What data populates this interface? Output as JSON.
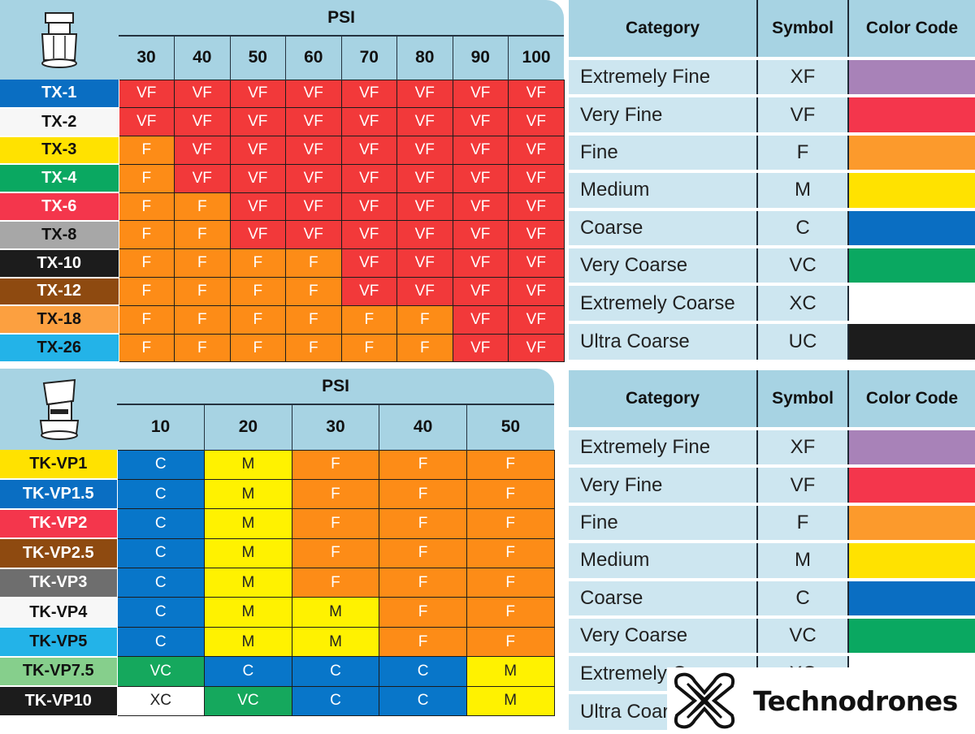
{
  "colors": {
    "XF": "#a882b8",
    "VF": "#f4364c",
    "F": "#fc8d1c",
    "M": "#ffe200",
    "C": "#0a6ec2",
    "VC": "#0aa861",
    "XC": "#ffffff",
    "UC": "#1c1c1c",
    "cell_VF": "#f2393a",
    "cell_F": "#fd8c17",
    "cell_M": "#fff200",
    "cell_C": "#0876c9",
    "cell_VC": "#15a85d",
    "cell_XC": "#ffffff"
  },
  "tx_table": {
    "psi_title": "PSI",
    "psi": [
      "30",
      "40",
      "50",
      "60",
      "70",
      "80",
      "90",
      "100"
    ],
    "rows": [
      {
        "name": "TX-1",
        "bg": "#0a6ec2",
        "fg": "#ffffff",
        "values": [
          "VF",
          "VF",
          "VF",
          "VF",
          "VF",
          "VF",
          "VF",
          "VF"
        ]
      },
      {
        "name": "TX-2",
        "bg": "#f7f7f7",
        "fg": "#111111",
        "values": [
          "VF",
          "VF",
          "VF",
          "VF",
          "VF",
          "VF",
          "VF",
          "VF"
        ]
      },
      {
        "name": "TX-3",
        "bg": "#ffe200",
        "fg": "#111111",
        "values": [
          "F",
          "VF",
          "VF",
          "VF",
          "VF",
          "VF",
          "VF",
          "VF"
        ]
      },
      {
        "name": "TX-4",
        "bg": "#0aa861",
        "fg": "#ffffff",
        "values": [
          "F",
          "VF",
          "VF",
          "VF",
          "VF",
          "VF",
          "VF",
          "VF"
        ]
      },
      {
        "name": "TX-6",
        "bg": "#f4364c",
        "fg": "#ffffff",
        "values": [
          "F",
          "F",
          "VF",
          "VF",
          "VF",
          "VF",
          "VF",
          "VF"
        ]
      },
      {
        "name": "TX-8",
        "bg": "#a7a7a7",
        "fg": "#111111",
        "values": [
          "F",
          "F",
          "VF",
          "VF",
          "VF",
          "VF",
          "VF",
          "VF"
        ]
      },
      {
        "name": "TX-10",
        "bg": "#1c1c1c",
        "fg": "#ffffff",
        "values": [
          "F",
          "F",
          "F",
          "F",
          "VF",
          "VF",
          "VF",
          "VF"
        ]
      },
      {
        "name": "TX-12",
        "bg": "#8e4a10",
        "fg": "#ffffff",
        "values": [
          "F",
          "F",
          "F",
          "F",
          "VF",
          "VF",
          "VF",
          "VF"
        ]
      },
      {
        "name": "TX-18",
        "bg": "#fca040",
        "fg": "#111111",
        "values": [
          "F",
          "F",
          "F",
          "F",
          "F",
          "F",
          "VF",
          "VF"
        ]
      },
      {
        "name": "TX-26",
        "bg": "#23b3e8",
        "fg": "#111111",
        "values": [
          "F",
          "F",
          "F",
          "F",
          "F",
          "F",
          "VF",
          "VF"
        ]
      }
    ]
  },
  "tk_table": {
    "psi_title": "PSI",
    "psi": [
      "10",
      "20",
      "30",
      "40",
      "50"
    ],
    "rows": [
      {
        "name": "TK-VP1",
        "bg": "#ffe200",
        "fg": "#111111",
        "values": [
          "C",
          "M",
          "F",
          "F",
          "F"
        ]
      },
      {
        "name": "TK-VP1.5",
        "bg": "#0a6ec2",
        "fg": "#ffffff",
        "values": [
          "C",
          "M",
          "F",
          "F",
          "F"
        ]
      },
      {
        "name": "TK-VP2",
        "bg": "#f4364c",
        "fg": "#ffffff",
        "values": [
          "C",
          "M",
          "F",
          "F",
          "F"
        ]
      },
      {
        "name": "TK-VP2.5",
        "bg": "#8e4a10",
        "fg": "#ffffff",
        "values": [
          "C",
          "M",
          "F",
          "F",
          "F"
        ]
      },
      {
        "name": "TK-VP3",
        "bg": "#6e6e6e",
        "fg": "#ffffff",
        "values": [
          "C",
          "M",
          "F",
          "F",
          "F"
        ]
      },
      {
        "name": "TK-VP4",
        "bg": "#f7f7f7",
        "fg": "#111111",
        "values": [
          "C",
          "M",
          "M",
          "F",
          "F"
        ]
      },
      {
        "name": "TK-VP5",
        "bg": "#23b3e8",
        "fg": "#111111",
        "values": [
          "C",
          "M",
          "M",
          "F",
          "F"
        ]
      },
      {
        "name": "TK-VP7.5",
        "bg": "#86cf8c",
        "fg": "#111111",
        "values": [
          "VC",
          "C",
          "C",
          "C",
          "M"
        ]
      },
      {
        "name": "TK-VP10",
        "bg": "#1c1c1c",
        "fg": "#ffffff",
        "values": [
          "XC",
          "VC",
          "C",
          "C",
          "M"
        ]
      }
    ]
  },
  "legend_headers": {
    "category": "Category",
    "symbol": "Symbol",
    "color_code": "Color Code"
  },
  "legend_rows": [
    {
      "category": "Extremely Fine",
      "symbol": "XF",
      "color": "#a882b8"
    },
    {
      "category": "Very Fine",
      "symbol": "VF",
      "color": "#f4364c"
    },
    {
      "category": "Fine",
      "symbol": "F",
      "color": "#fc9a2c"
    },
    {
      "category": "Medium",
      "symbol": "M",
      "color": "#ffe200"
    },
    {
      "category": "Coarse",
      "symbol": "C",
      "color": "#0a6ec2"
    },
    {
      "category": "Very Coarse",
      "symbol": "VC",
      "color": "#0aa861"
    },
    {
      "category": "Extremely Coarse",
      "symbol": "XC",
      "color": "#ffffff"
    },
    {
      "category": "Ultra Coarse",
      "symbol": "UC",
      "color": "#1c1c1c"
    }
  ],
  "brand": {
    "name": "Technodrones",
    "logo_icon": "x-cross-logo-icon"
  }
}
